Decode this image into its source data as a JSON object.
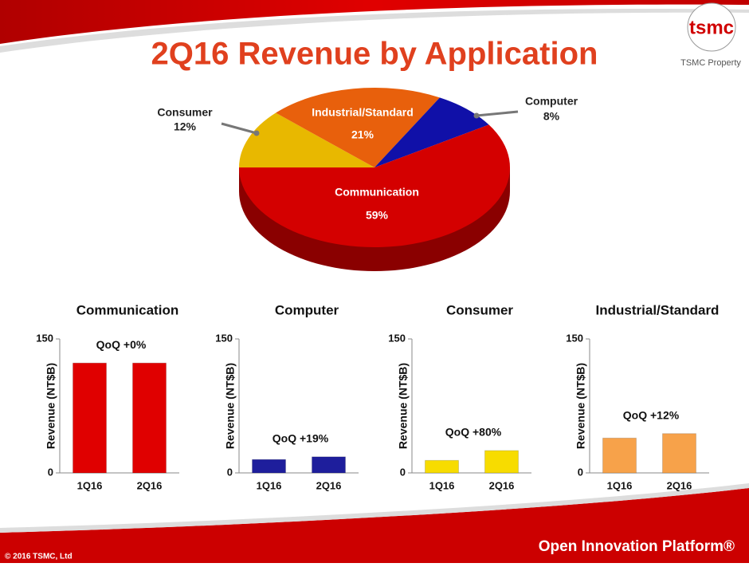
{
  "header": {
    "title": "2Q16 Revenue by Application",
    "logo": "tsmc",
    "logo_caption": "TSMC Property"
  },
  "chart_data": [
    {
      "type": "pie",
      "categories": [
        "Consumer",
        "Industrial/Standard",
        "Computer",
        "Communication"
      ],
      "values": [
        12,
        21,
        8,
        59
      ],
      "value_labels": [
        "12%",
        "21%",
        "8%",
        "59%"
      ],
      "colors": [
        "#e8b800",
        "#e8600c",
        "#1010a8",
        "#d40000"
      ]
    },
    {
      "type": "bar",
      "title": "Communication",
      "categories": [
        "1Q16",
        "2Q16"
      ],
      "values": [
        123,
        123
      ],
      "color": "#e00000",
      "ylabel": "Revenue (NT$B)",
      "ylim": [
        0,
        150
      ],
      "yticks": [
        0,
        150
      ],
      "annotation": "QoQ  +0%"
    },
    {
      "type": "bar",
      "title": "Computer",
      "categories": [
        "1Q16",
        "2Q16"
      ],
      "values": [
        15,
        18
      ],
      "color": "#1e1e9c",
      "ylabel": "Revenue (NT$B)",
      "ylim": [
        0,
        150
      ],
      "yticks": [
        0,
        150
      ],
      "annotation": "QoQ +19%"
    },
    {
      "type": "bar",
      "title": "Consumer",
      "categories": [
        "1Q16",
        "2Q16"
      ],
      "values": [
        14,
        25
      ],
      "color": "#f7dc00",
      "ylabel": "Revenue (NT$B)",
      "ylim": [
        0,
        150
      ],
      "yticks": [
        0,
        150
      ],
      "annotation": "QoQ +80%"
    },
    {
      "type": "bar",
      "title": "Industrial/Standard",
      "categories": [
        "1Q16",
        "2Q16"
      ],
      "values": [
        39,
        44
      ],
      "color": "#f7a24a",
      "ylabel": "Revenue (NT$B)",
      "ylim": [
        0,
        150
      ],
      "yticks": [
        0,
        150
      ],
      "annotation": "QoQ +12%"
    }
  ],
  "footer": {
    "copyright": "© 2016 TSMC, Ltd",
    "platform": "Open Innovation Platform®"
  }
}
